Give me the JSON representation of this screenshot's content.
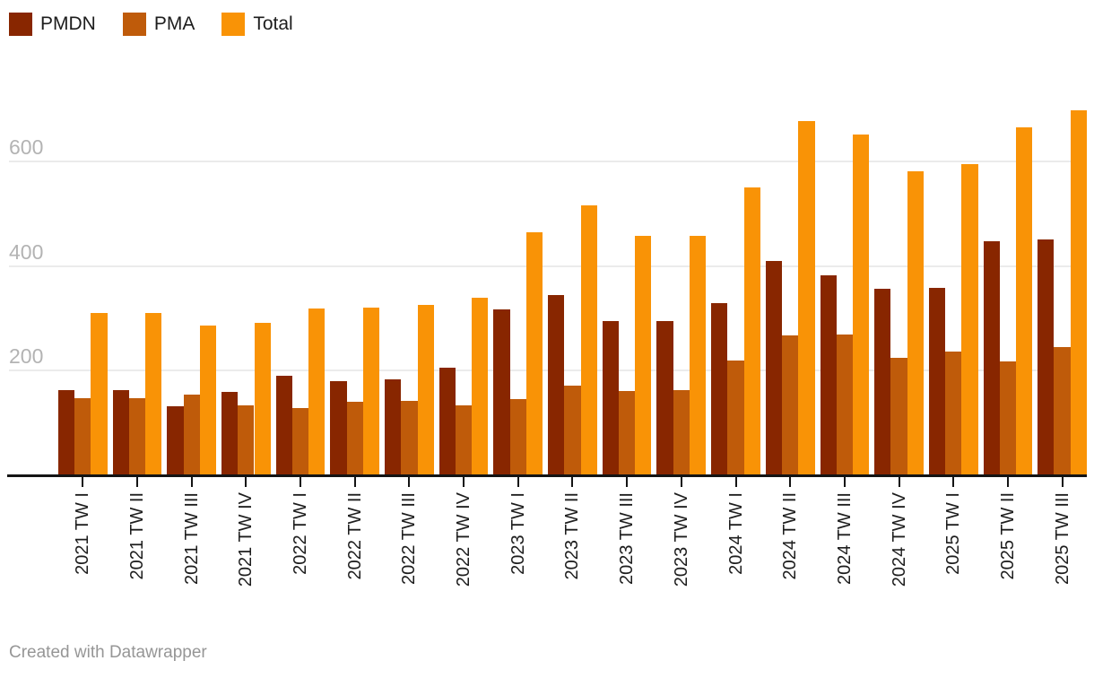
{
  "chart_data": {
    "type": "bar",
    "title": "",
    "xlabel": "",
    "ylabel": "",
    "categories": [
      "2021 TW I",
      "2021 TW II",
      "2021 TW III",
      "2021 TW IV",
      "2022 TW I",
      "2022 TW II",
      "2022 TW III",
      "2022 TW IV",
      "2023 TW I",
      "2023 TW II",
      "2023 TW III",
      "2023 TW IV",
      "2024 TW I",
      "2024 TW II",
      "2024 TW III",
      "2024 TW IV",
      "2025 TW I",
      "2025 TW II",
      "2025 TW III"
    ],
    "series": [
      {
        "name": "PMDN",
        "color": "#882600",
        "values": [
          163,
          163,
          132,
          159,
          191,
          180,
          183,
          205,
          318,
          345,
          295,
          295,
          330,
          410,
          382,
          356,
          358,
          448,
          451
        ]
      },
      {
        "name": "PMA",
        "color": "#BF5B0A",
        "values": [
          147,
          147,
          155,
          133,
          128,
          140,
          142,
          134,
          146,
          171,
          162,
          163,
          220,
          268,
          270,
          225,
          237,
          218,
          246
        ]
      },
      {
        "name": "Total",
        "color": "#F99306",
        "values": [
          310,
          310,
          287,
          292,
          319,
          320,
          325,
          339,
          464,
          516,
          457,
          458,
          550,
          678,
          652,
          581,
          595,
          666,
          697
        ]
      }
    ],
    "yticks": [
      200,
      400,
      600
    ],
    "ylim": [
      0,
      700
    ],
    "grid": "horizontal",
    "legend_position": "top-left"
  },
  "footer": {
    "credit": "Created with Datawrapper"
  }
}
